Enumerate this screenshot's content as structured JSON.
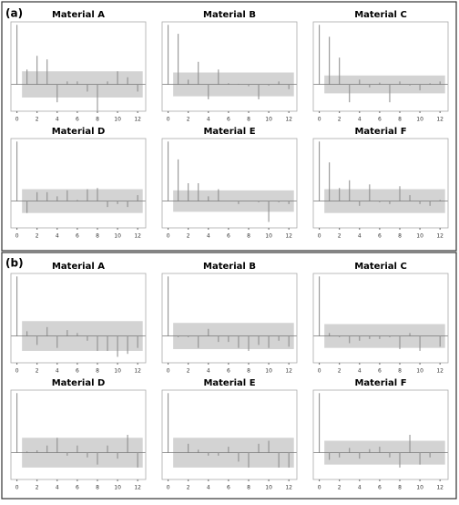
{
  "panel_labels": [
    "(a)",
    "(b)"
  ],
  "chart_data": [
    {
      "type": "stem",
      "title": "Material A",
      "x": [
        0,
        1,
        2,
        3,
        4,
        5,
        6,
        7,
        8,
        9,
        10,
        11,
        12
      ],
      "values": [
        1,
        0.25,
        0.48,
        0.42,
        -0.3,
        0.05,
        0.05,
        -0.12,
        -0.45,
        0.05,
        0.22,
        0.12,
        -0.12
      ],
      "confidence_limit": 0.22,
      "xlim": [
        -0.6,
        12.8
      ],
      "ylim": [
        -0.45,
        1.05
      ],
      "xticks": [
        0,
        2,
        4,
        6,
        8,
        10,
        12
      ],
      "color": "#888888",
      "band_color": "#d3d3d3"
    },
    {
      "type": "stem",
      "title": "Material B",
      "x": [
        0,
        1,
        2,
        3,
        4,
        5,
        6,
        7,
        8,
        9,
        10,
        11,
        12
      ],
      "values": [
        1,
        0.85,
        0.08,
        0.38,
        -0.25,
        0.25,
        0.02,
        0.01,
        -0.03,
        -0.25,
        -0.02,
        0.05,
        -0.08
      ],
      "confidence_limit": 0.2,
      "xlim": [
        -0.6,
        12.8
      ],
      "ylim": [
        -0.45,
        1.05
      ],
      "xticks": [
        0,
        2,
        4,
        6,
        8,
        10,
        12
      ],
      "color": "#888888",
      "band_color": "#d3d3d3"
    },
    {
      "type": "stem",
      "title": "Material C",
      "x": [
        0,
        1,
        2,
        3,
        4,
        5,
        6,
        7,
        8,
        9,
        10,
        11,
        12
      ],
      "values": [
        1,
        0.8,
        0.45,
        -0.3,
        0.08,
        -0.05,
        0.03,
        -0.3,
        0.05,
        -0.02,
        -0.1,
        0.02,
        0.05
      ],
      "confidence_limit": 0.15,
      "xlim": [
        -0.6,
        12.8
      ],
      "ylim": [
        -0.45,
        1.05
      ],
      "xticks": [
        0,
        2,
        4,
        6,
        8,
        10,
        12
      ],
      "color": "#888888",
      "band_color": "#d3d3d3"
    },
    {
      "type": "stem",
      "title": "Material D",
      "x": [
        0,
        1,
        2,
        3,
        4,
        5,
        6,
        7,
        8,
        9,
        10,
        11,
        12
      ],
      "values": [
        1,
        -0.2,
        0.15,
        0.15,
        0.08,
        0.18,
        0.02,
        0.2,
        0.22,
        -0.1,
        -0.05,
        -0.1,
        0.1
      ],
      "confidence_limit": 0.2,
      "xlim": [
        -0.6,
        12.8
      ],
      "ylim": [
        -0.45,
        1.05
      ],
      "xticks": [
        0,
        2,
        4,
        6,
        8,
        10,
        12
      ],
      "color": "#888888",
      "band_color": "#d3d3d3"
    },
    {
      "type": "stem",
      "title": "Material E",
      "x": [
        0,
        1,
        2,
        3,
        4,
        5,
        6,
        7,
        8,
        9,
        10,
        11,
        12
      ],
      "values": [
        1,
        0.7,
        0.3,
        0.3,
        0.08,
        0.2,
        0,
        -0.05,
        0,
        -0.02,
        -0.35,
        -0.02,
        -0.05
      ],
      "confidence_limit": 0.18,
      "xlim": [
        -0.6,
        12.8
      ],
      "ylim": [
        -0.45,
        1.05
      ],
      "xticks": [
        0,
        2,
        4,
        6,
        8,
        10,
        12
      ],
      "color": "#888888",
      "band_color": "#d3d3d3"
    },
    {
      "type": "stem",
      "title": "Material F",
      "x": [
        0,
        1,
        2,
        3,
        4,
        5,
        6,
        7,
        8,
        9,
        10,
        11,
        12
      ],
      "values": [
        1,
        0.65,
        0.22,
        0.35,
        -0.08,
        0.28,
        -0.02,
        -0.05,
        0.25,
        0.1,
        -0.05,
        -0.08,
        0.02
      ],
      "confidence_limit": 0.2,
      "xlim": [
        -0.6,
        12.8
      ],
      "ylim": [
        -0.45,
        1.05
      ],
      "xticks": [
        0,
        2,
        4,
        6,
        8,
        10,
        12
      ],
      "color": "#888888",
      "band_color": "#d3d3d3"
    },
    {
      "type": "stem",
      "title": "Material A",
      "x": [
        0,
        1,
        2,
        3,
        4,
        5,
        6,
        7,
        8,
        9,
        10,
        11,
        12
      ],
      "values": [
        1,
        0.08,
        -0.15,
        0.15,
        -0.2,
        0.1,
        0.05,
        -0.08,
        -0.25,
        -0.25,
        -0.35,
        -0.3,
        -0.2
      ],
      "confidence_limit": 0.25,
      "xlim": [
        -0.6,
        12.8
      ],
      "ylim": [
        -0.45,
        1.05
      ],
      "xticks": [
        0,
        2,
        4,
        6,
        8,
        10,
        12
      ],
      "color": "#888888",
      "band_color": "#d3d3d3"
    },
    {
      "type": "stem",
      "title": "Material B",
      "x": [
        0,
        1,
        2,
        3,
        4,
        5,
        6,
        7,
        8,
        9,
        10,
        11,
        12
      ],
      "values": [
        1,
        -0.02,
        -0.02,
        -0.2,
        0.12,
        -0.1,
        -0.1,
        -0.2,
        -0.25,
        -0.15,
        -0.2,
        -0.08,
        -0.18
      ],
      "confidence_limit": 0.22,
      "xlim": [
        -0.6,
        12.8
      ],
      "ylim": [
        -0.45,
        1.05
      ],
      "xticks": [
        0,
        2,
        4,
        6,
        8,
        10,
        12
      ],
      "color": "#888888",
      "band_color": "#d3d3d3"
    },
    {
      "type": "stem",
      "title": "Material C",
      "x": [
        0,
        1,
        2,
        3,
        4,
        5,
        6,
        7,
        8,
        9,
        10,
        11,
        12
      ],
      "values": [
        1,
        0.05,
        -0.02,
        -0.12,
        -0.08,
        -0.05,
        -0.05,
        -0.02,
        -0.22,
        0.05,
        -0.25,
        0,
        -0.18
      ],
      "confidence_limit": 0.2,
      "xlim": [
        -0.6,
        12.8
      ],
      "ylim": [
        -0.45,
        1.05
      ],
      "xticks": [
        0,
        2,
        4,
        6,
        8,
        10,
        12
      ],
      "color": "#888888",
      "band_color": "#d3d3d3"
    },
    {
      "type": "stem",
      "title": "Material D",
      "x": [
        0,
        1,
        2,
        3,
        4,
        5,
        6,
        7,
        8,
        9,
        10,
        11,
        12
      ],
      "values": [
        1,
        0.02,
        0.04,
        0.12,
        0.25,
        -0.05,
        0.12,
        -0.08,
        -0.2,
        0.12,
        -0.1,
        0.3,
        -0.25
      ],
      "confidence_limit": 0.25,
      "xlim": [
        -0.6,
        12.8
      ],
      "ylim": [
        -0.45,
        1.05
      ],
      "xticks": [
        0,
        2,
        4,
        6,
        8,
        10,
        12
      ],
      "color": "#888888",
      "band_color": "#d3d3d3"
    },
    {
      "type": "stem",
      "title": "Material E",
      "x": [
        0,
        1,
        2,
        3,
        4,
        5,
        6,
        7,
        8,
        9,
        10,
        11,
        12
      ],
      "values": [
        1,
        0,
        0.15,
        0.05,
        -0.05,
        -0.05,
        0.1,
        -0.15,
        -0.25,
        0.15,
        0.2,
        -0.25,
        -0.25
      ],
      "confidence_limit": 0.25,
      "xlim": [
        -0.6,
        12.8
      ],
      "ylim": [
        -0.45,
        1.05
      ],
      "xticks": [
        0,
        2,
        4,
        6,
        8,
        10,
        12
      ],
      "color": "#888888",
      "band_color": "#d3d3d3"
    },
    {
      "type": "stem",
      "title": "Material F",
      "x": [
        0,
        1,
        2,
        3,
        4,
        5,
        6,
        7,
        8,
        9,
        10,
        11,
        12
      ],
      "values": [
        1,
        -0.12,
        -0.08,
        0.08,
        -0.1,
        0.06,
        0.1,
        -0.08,
        -0.25,
        0.3,
        -0.2,
        -0.08,
        0
      ],
      "confidence_limit": 0.2,
      "xlim": [
        -0.6,
        12.8
      ],
      "ylim": [
        -0.45,
        1.05
      ],
      "xticks": [
        0,
        2,
        4,
        6,
        8,
        10,
        12
      ],
      "color": "#888888",
      "band_color": "#d3d3d3"
    }
  ]
}
